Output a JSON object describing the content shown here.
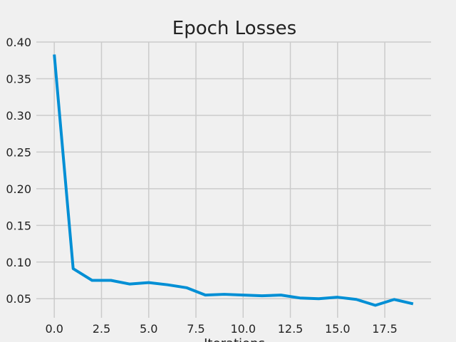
{
  "chart_data": {
    "type": "line",
    "title": "Epoch Losses",
    "x_label": "Iterations",
    "x": [
      0,
      1,
      2,
      3,
      4,
      5,
      6,
      7,
      8,
      9,
      10,
      11,
      12,
      13,
      14,
      15,
      16,
      17,
      18,
      19
    ],
    "series": [
      {
        "color": "#008fd5",
        "values": [
          0.383,
          0.091,
          0.075,
          0.075,
          0.07,
          0.072,
          0.069,
          0.065,
          0.055,
          0.056,
          0.055,
          0.054,
          0.055,
          0.051,
          0.05,
          0.052,
          0.049,
          0.041,
          0.049,
          0.043
        ]
      }
    ],
    "xlim": [
      -0.95,
      19.95
    ],
    "xticks": [
      {
        "value": 0,
        "label": "0.0"
      },
      {
        "value": 2.5,
        "label": "2.5"
      },
      {
        "value": 5,
        "label": "5.0"
      },
      {
        "value": 7.5,
        "label": "7.5"
      },
      {
        "value": 10,
        "label": "10.0"
      },
      {
        "value": 12.5,
        "label": "12.5"
      },
      {
        "value": 15,
        "label": "15.0"
      },
      {
        "value": 17.5,
        "label": "17.5"
      }
    ],
    "ylim": [
      0.024,
      0.4
    ],
    "yticks": [
      0.05,
      {
        "value": 0.1,
        "label": "0.10"
      },
      {
        "value": 0.15,
        "label": "0.15"
      },
      {
        "value": 0.2,
        "label": "0.20"
      },
      {
        "value": 0.25,
        "label": "0.25"
      },
      {
        "value": 0.3,
        "label": "0.30"
      },
      {
        "value": 0.35,
        "label": "0.35"
      },
      {
        "value": 0.4,
        "label": "0.40"
      }
    ],
    "grid": true
  }
}
